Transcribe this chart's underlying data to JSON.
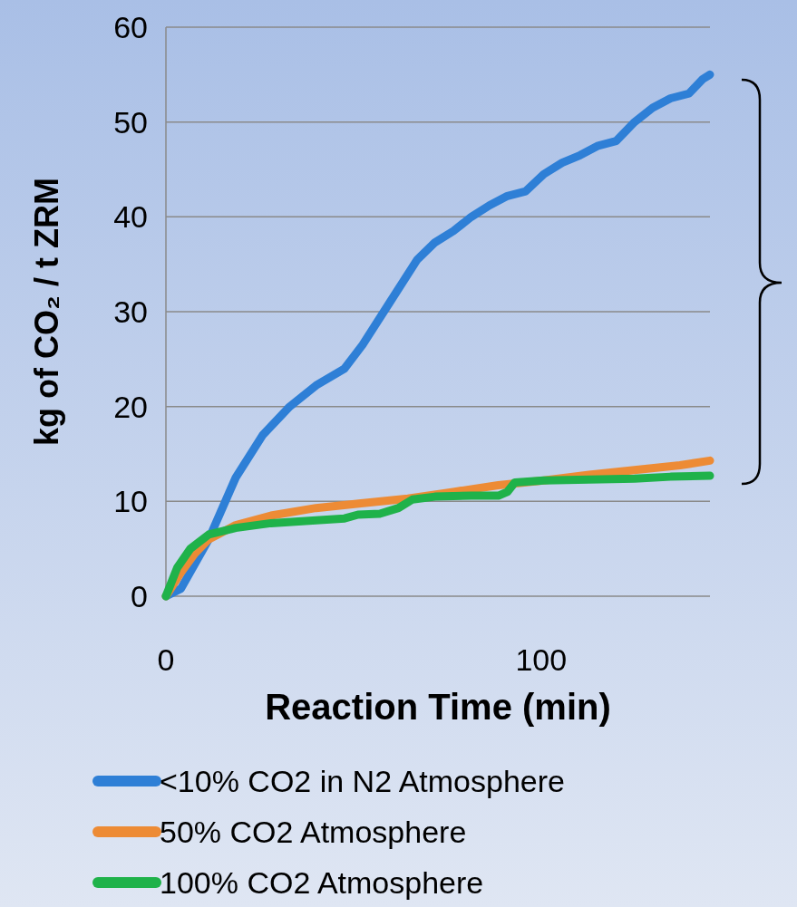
{
  "chart_data": {
    "type": "line",
    "xlabel": "Reaction Time (min)",
    "ylabel": "kg of CO₂ / t ZRM",
    "xlim": [
      0,
      145
    ],
    "xticks": [
      0,
      100
    ],
    "ylim": [
      0,
      60
    ],
    "yticks": [
      0,
      10,
      20,
      30,
      40,
      50,
      60
    ],
    "grid": "y",
    "legend": "bottom",
    "marker": "none",
    "line_style": "solid",
    "series": [
      {
        "name": "<10% CO2 in N2 Atmosphere",
        "color": "#2e7fd6",
        "x": [
          0,
          4,
          11.4,
          18.6,
          25.8,
          33,
          40.3,
          47.6,
          52.4,
          59.7,
          67,
          71.7,
          76.6,
          81.4,
          86.2,
          91,
          95.9,
          100.7,
          105.6,
          110.4,
          115.2,
          120,
          124.9,
          129.7,
          134.5,
          139.4,
          143,
          145
        ],
        "values": [
          0,
          0.8,
          6,
          12.5,
          17,
          20,
          22.3,
          24,
          26.5,
          31,
          35.5,
          37.3,
          38.5,
          40,
          41.2,
          42.2,
          42.7,
          44.5,
          45.7,
          46.5,
          47.5,
          48,
          50,
          51.5,
          52.5,
          53,
          54.5,
          55
        ]
      },
      {
        "name": "50% CO2 Atmosphere",
        "color": "#ed8b35",
        "x": [
          0,
          4,
          7.7,
          11.4,
          18.6,
          28,
          40,
          52,
          64.5,
          76.6,
          88.6,
          100.7,
          112.8,
          124.9,
          137,
          145
        ],
        "values": [
          0,
          2.5,
          4.5,
          6,
          7.5,
          8.5,
          9.3,
          9.8,
          10.3,
          11,
          11.7,
          12.2,
          12.8,
          13.3,
          13.8,
          14.3
        ]
      },
      {
        "name": "100% CO2 Atmosphere",
        "color": "#1fb24a",
        "x": [
          0,
          3,
          6.5,
          11.4,
          18.6,
          28,
          40,
          47.6,
          51.2,
          57,
          62,
          65.7,
          71.7,
          81.4,
          88.6,
          91,
          93,
          100.7,
          112.8,
          124.9,
          134.5,
          145
        ],
        "values": [
          0,
          3,
          5,
          6.5,
          7.2,
          7.7,
          8,
          8.2,
          8.6,
          8.7,
          9.3,
          10.2,
          10.5,
          10.6,
          10.6,
          11,
          12,
          12.2,
          12.3,
          12.4,
          12.6,
          12.7
        ]
      }
    ]
  }
}
